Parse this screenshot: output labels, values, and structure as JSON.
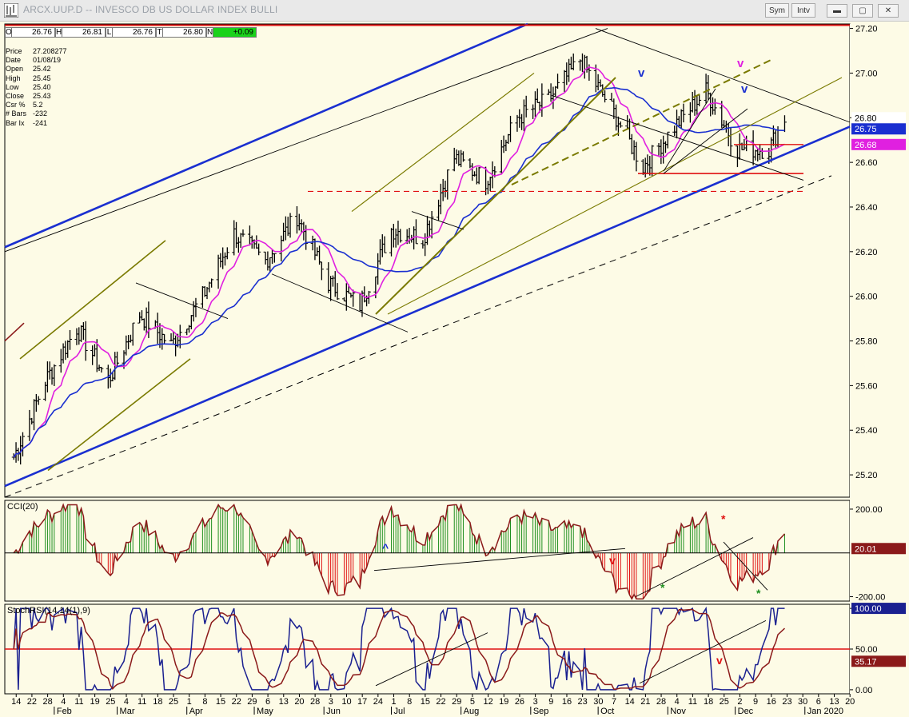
{
  "window": {
    "title": "ARCX.UUP.D -- INVESCO DB US DOLLAR INDEX BULLI",
    "buttons": {
      "sym": "Sym",
      "intv": "Intv"
    },
    "controls": {
      "minimize": "▬",
      "restore": "▢",
      "close": "✕"
    }
  },
  "ohlc_bar": [
    {
      "label": "O",
      "value": "26.76"
    },
    {
      "label": "H",
      "value": "26.81"
    },
    {
      "label": "L",
      "value": "26.76"
    },
    {
      "label": "T",
      "value": "26.80"
    },
    {
      "label": "N",
      "value": "+0.09"
    }
  ],
  "info_panel": [
    {
      "key": "Price",
      "value": "27.208277"
    },
    {
      "key": "Date",
      "value": "01/08/19"
    },
    {
      "key": "Open",
      "value": "25.42"
    },
    {
      "key": "High",
      "value": "25.45"
    },
    {
      "key": "Low",
      "value": "25.40"
    },
    {
      "key": "Close",
      "value": "25.43"
    },
    {
      "key": "Csr %",
      "value": "5.2"
    },
    {
      "key": "# Bars",
      "value": "-232"
    },
    {
      "key": "Bar Ix",
      "value": "-241"
    }
  ],
  "colors": {
    "background": "#fdfbe6",
    "price_bars": "#000000",
    "ma_short": "#e020e0",
    "ma_long": "#1a2fd0",
    "channel_blue": "#1a2fd0",
    "olive": "#7a7a00",
    "support_red": "#e01010",
    "cci_pos": "#1f8f1f",
    "cci_neg": "#e01010",
    "cci_line": "#8b1a1a",
    "stoch_fast": "#1a2090",
    "stoch_slow": "#8b1a1a"
  },
  "chart_data": [
    {
      "type": "line",
      "panel": "price",
      "description_of_series": "daily OHLC bars with moving averages",
      "ylim": [
        25.1,
        27.22
      ],
      "y_ticks": [
        "27.20",
        "27.00",
        "26.80",
        "26.60",
        "26.40",
        "26.20",
        "26.00",
        "25.80",
        "25.60",
        "25.40",
        "25.20"
      ],
      "price_tags": [
        {
          "value": "26.80",
          "color": "#ffffff",
          "text_color": "#000000"
        },
        {
          "value": "26.75",
          "color": "#1a2fd0",
          "text_color": "#ffffff"
        },
        {
          "value": "26.68",
          "color": "#e020e0",
          "text_color": "#ffffff"
        }
      ],
      "series": [
        {
          "name": "",
          "x_dates": [
            "2019-01-14",
            "2019-01-28",
            "2019-02-11",
            "2019-02-25",
            "2019-03-11",
            "2019-03-25",
            "2019-04-08",
            "2019-04-22",
            "2019-05-06",
            "2019-05-20",
            "2019-06-03",
            "2019-06-17",
            "2019-07-01",
            "2019-07-15",
            "2019-07-29",
            "2019-08-12",
            "2019-08-26",
            "2019-09-09",
            "2019-09-23",
            "2019-10-07",
            "2019-10-21",
            "2019-11-04",
            "2019-11-18",
            "2019-12-02",
            "2019-12-16",
            "2019-12-23"
          ],
          "close": [
            25.28,
            25.62,
            25.86,
            25.62,
            25.92,
            25.78,
            26.0,
            26.28,
            26.16,
            26.36,
            26.06,
            25.96,
            26.3,
            26.26,
            26.62,
            26.52,
            26.8,
            26.88,
            27.06,
            26.84,
            26.58,
            26.76,
            26.92,
            26.66,
            26.66,
            26.8
          ]
        }
      ],
      "annotations": [
        {
          "text": "v",
          "color": "#1a2fd0"
        },
        {
          "text": "v",
          "color": "#e020e0"
        },
        {
          "text": "v",
          "color": "#1a2fd0"
        }
      ]
    },
    {
      "type": "bar",
      "panel": "cci",
      "title": "CCI(20)",
      "ylim": [
        -220,
        240
      ],
      "y_ticks": [
        "200.00",
        "-200.00"
      ],
      "current_value": "20.01",
      "annotations": [
        {
          "text": "^",
          "color": "#1a2fd0"
        },
        {
          "text": "v",
          "color": "#e01010"
        },
        {
          "text": "*",
          "color": "#1f8f1f"
        },
        {
          "text": "*",
          "color": "#e01010"
        },
        {
          "text": "*",
          "color": "#1f8f1f"
        }
      ]
    },
    {
      "type": "line",
      "panel": "stochrsi",
      "title": "StochRSI(14,14(1),9)",
      "ylim": [
        -5,
        105
      ],
      "y_ticks": [
        "100.00",
        "50.00",
        "0.00"
      ],
      "current_values": [
        "100.00",
        "35.17"
      ],
      "annotations": [
        {
          "text": "v",
          "color": "#e01010"
        }
      ]
    }
  ],
  "x_axis": {
    "day_ticks": [
      "14",
      "22",
      "28",
      "4",
      "11",
      "19",
      "25",
      "4",
      "11",
      "18",
      "25",
      "1",
      "8",
      "15",
      "22",
      "29",
      "6",
      "13",
      "20",
      "28",
      "3",
      "10",
      "17",
      "24",
      "1",
      "8",
      "15",
      "22",
      "29",
      "5",
      "12",
      "19",
      "26",
      "3",
      "9",
      "16",
      "23",
      "30",
      "7",
      "14",
      "21",
      "28",
      "4",
      "11",
      "18",
      "25",
      "2",
      "9",
      "16",
      "23",
      "30",
      "6",
      "13",
      "20"
    ],
    "month_ticks": [
      "Feb",
      "Mar",
      "Apr",
      "May",
      "Jun",
      "Jul",
      "Aug",
      "Sep",
      "Oct",
      "Nov",
      "Dec",
      "Jan 2020"
    ]
  }
}
